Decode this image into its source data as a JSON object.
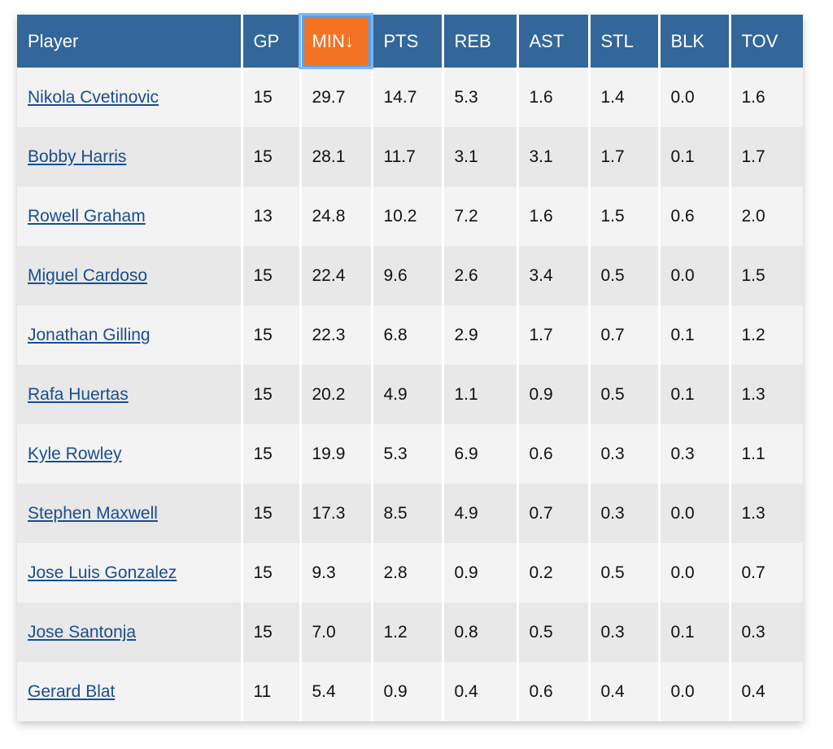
{
  "columns": [
    "Player",
    "GP",
    "MIN↓",
    "PTS",
    "REB",
    "AST",
    "STL",
    "BLK",
    "TOV"
  ],
  "sorted_column": "MIN",
  "colors": {
    "header": "#336699",
    "sorted_header": "#f47323",
    "link": "#1a4d8f"
  },
  "rows": [
    {
      "player": "Nikola Cvetinovic",
      "gp": "15",
      "min": "29.7",
      "pts": "14.7",
      "reb": "5.3",
      "ast": "1.6",
      "stl": "1.4",
      "blk": "0.0",
      "tov": "1.6"
    },
    {
      "player": "Bobby Harris",
      "gp": "15",
      "min": "28.1",
      "pts": "11.7",
      "reb": "3.1",
      "ast": "3.1",
      "stl": "1.7",
      "blk": "0.1",
      "tov": "1.7"
    },
    {
      "player": "Rowell Graham",
      "gp": "13",
      "min": "24.8",
      "pts": "10.2",
      "reb": "7.2",
      "ast": "1.6",
      "stl": "1.5",
      "blk": "0.6",
      "tov": "2.0"
    },
    {
      "player": "Miguel Cardoso",
      "gp": "15",
      "min": "22.4",
      "pts": "9.6",
      "reb": "2.6",
      "ast": "3.4",
      "stl": "0.5",
      "blk": "0.0",
      "tov": "1.5"
    },
    {
      "player": "Jonathan Gilling",
      "gp": "15",
      "min": "22.3",
      "pts": "6.8",
      "reb": "2.9",
      "ast": "1.7",
      "stl": "0.7",
      "blk": "0.1",
      "tov": "1.2"
    },
    {
      "player": "Rafa Huertas",
      "gp": "15",
      "min": "20.2",
      "pts": "4.9",
      "reb": "1.1",
      "ast": "0.9",
      "stl": "0.5",
      "blk": "0.1",
      "tov": "1.3"
    },
    {
      "player": "Kyle Rowley",
      "gp": "15",
      "min": "19.9",
      "pts": "5.3",
      "reb": "6.9",
      "ast": "0.6",
      "stl": "0.3",
      "blk": "0.3",
      "tov": "1.1"
    },
    {
      "player": "Stephen Maxwell",
      "gp": "15",
      "min": "17.3",
      "pts": "8.5",
      "reb": "4.9",
      "ast": "0.7",
      "stl": "0.3",
      "blk": "0.0",
      "tov": "1.3"
    },
    {
      "player": "Jose Luis Gonzalez",
      "gp": "15",
      "min": "9.3",
      "pts": "2.8",
      "reb": "0.9",
      "ast": "0.2",
      "stl": "0.5",
      "blk": "0.0",
      "tov": "0.7"
    },
    {
      "player": "Jose Santonja",
      "gp": "15",
      "min": "7.0",
      "pts": "1.2",
      "reb": "0.8",
      "ast": "0.5",
      "stl": "0.3",
      "blk": "0.1",
      "tov": "0.3"
    },
    {
      "player": "Gerard Blat",
      "gp": "11",
      "min": "5.4",
      "pts": "0.9",
      "reb": "0.4",
      "ast": "0.6",
      "stl": "0.4",
      "blk": "0.0",
      "tov": "0.4"
    }
  ]
}
